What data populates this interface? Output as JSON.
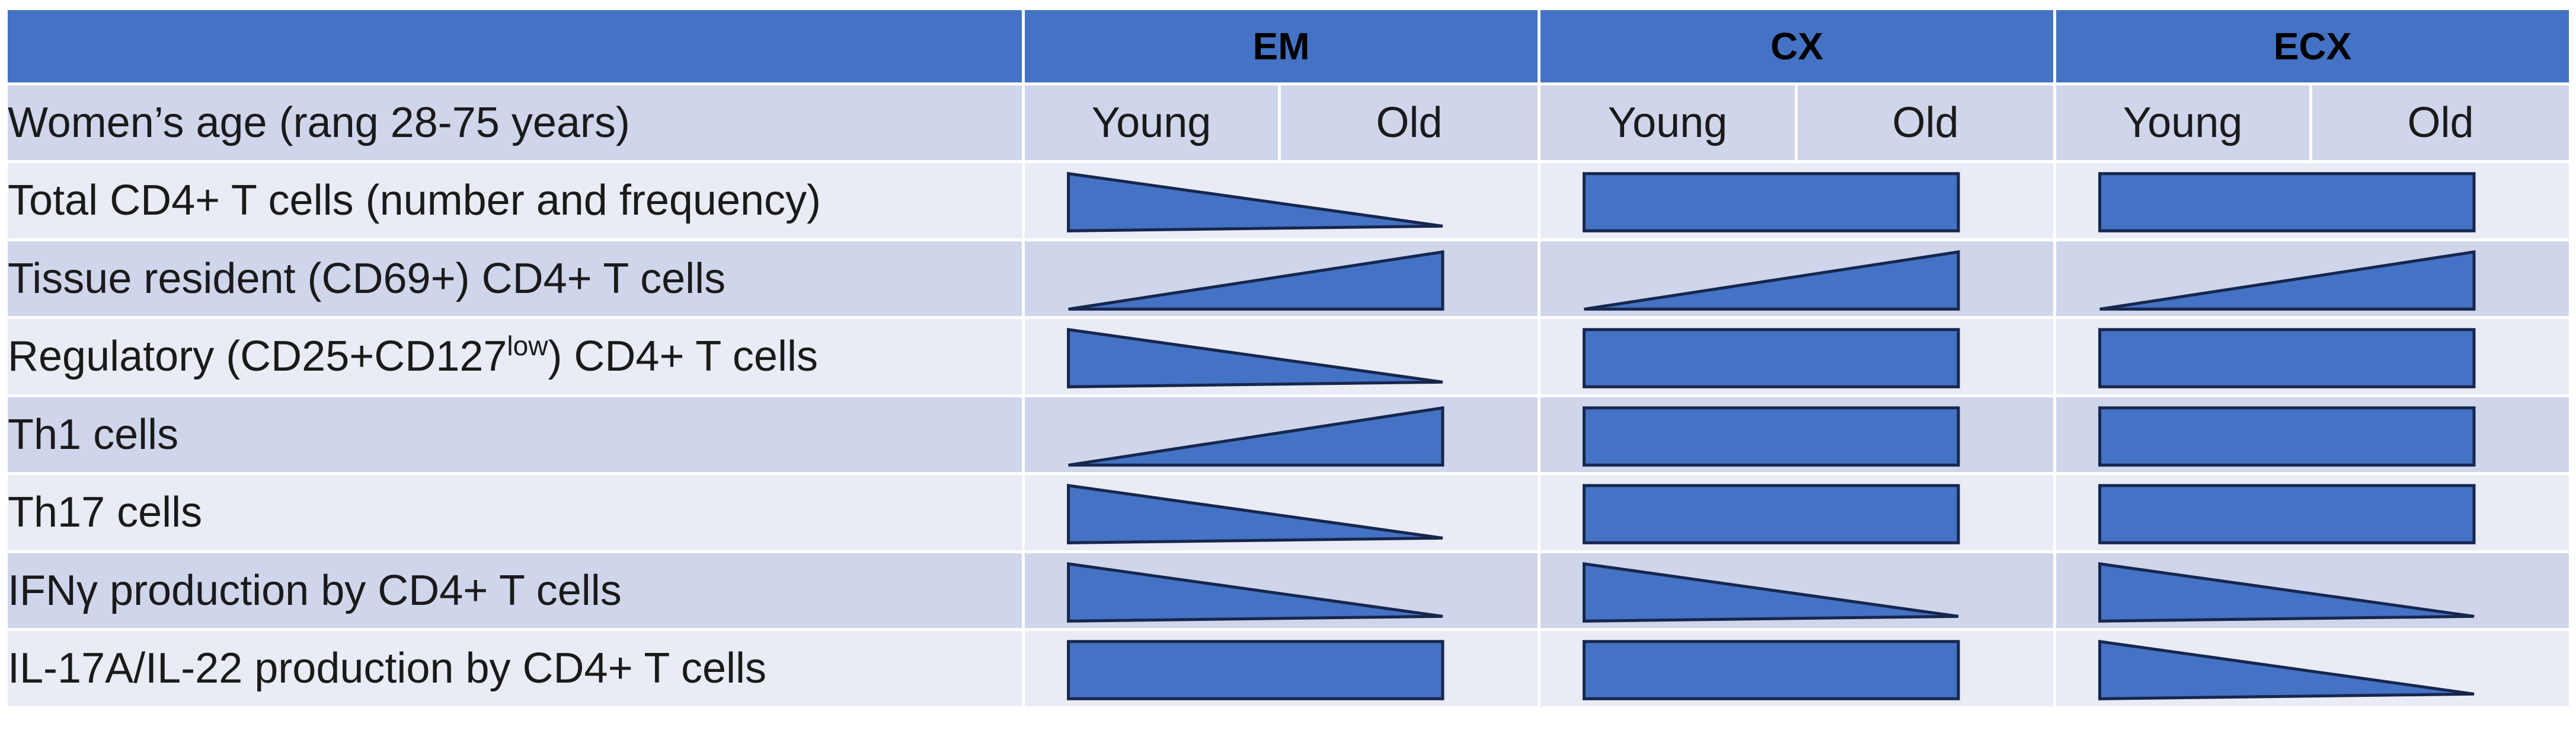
{
  "colors": {
    "header": "#4472c4",
    "band_dark": "#cfd5ea",
    "band_light": "#e9ebf5",
    "shape_fill": "#4472c4",
    "shape_stroke": "#17264d"
  },
  "groups": [
    "EM",
    "CX",
    "ECX"
  ],
  "age_row": {
    "label": "Women’s age (rang 28-75 years)",
    "young": "Young",
    "old": "Old"
  },
  "rows": [
    {
      "label": "Total CD4+ T cells (number and frequency)",
      "trends": {
        "EM": "decrease",
        "CX": "stable",
        "ECX": "stable"
      }
    },
    {
      "label": "Tissue resident (CD69+) CD4+ T cells",
      "trends": {
        "EM": "increase",
        "CX": "increase",
        "ECX": "increase"
      }
    },
    {
      "label_pre": "Regulatory (CD25+CD127",
      "label_sup": "low",
      "label_post": ") CD4+ T cells",
      "trends": {
        "EM": "decrease",
        "CX": "stable",
        "ECX": "stable"
      }
    },
    {
      "label": "Th1 cells",
      "trends": {
        "EM": "increase",
        "CX": "stable",
        "ECX": "stable"
      }
    },
    {
      "label": "Th17 cells",
      "trends": {
        "EM": "decrease",
        "CX": "stable",
        "ECX": "stable"
      }
    },
    {
      "label": "IFNγ production by CD4+ T cells",
      "trends": {
        "EM": "decrease",
        "CX": "decrease",
        "ECX": "decrease"
      }
    },
    {
      "label": "IL-17A/IL-22 production by CD4+ T cells",
      "trends": {
        "EM": "stable",
        "CX": "stable",
        "ECX": "decrease"
      }
    }
  ]
}
